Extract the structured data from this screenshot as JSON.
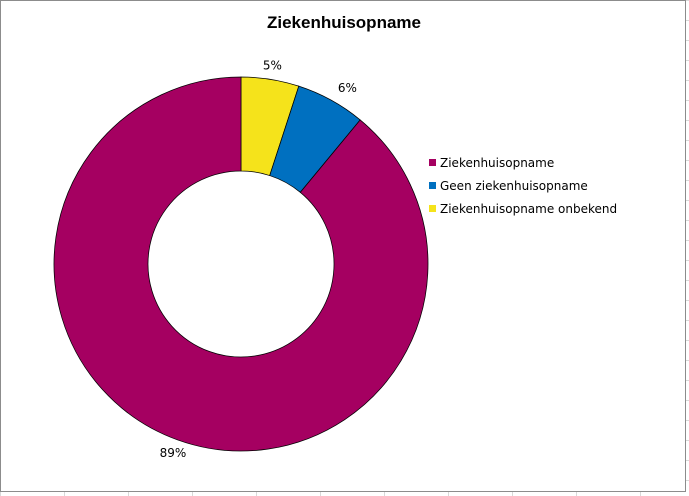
{
  "chart_data": {
    "type": "pie",
    "variant": "doughnut",
    "title": "Ziekenhuisopname",
    "series": [
      {
        "values": [
          89,
          6,
          5
        ],
        "categories": [
          "Ziekenhuisopname",
          "Geen ziekenhuisopname",
          "Ziekenhuisopname onbekend"
        ]
      }
    ],
    "data_labels": [
      "89%",
      "6%",
      "5%"
    ],
    "colors": [
      "#a50061",
      "#0070c0",
      "#f5e31b"
    ],
    "legend_position": "right",
    "start_angle_deg": 0,
    "direction": "clockwise",
    "slice_order_drawn": [
      "Ziekenhuisopname onbekend",
      "Geen ziekenhuisopname",
      "Ziekenhuisopname"
    ]
  }
}
